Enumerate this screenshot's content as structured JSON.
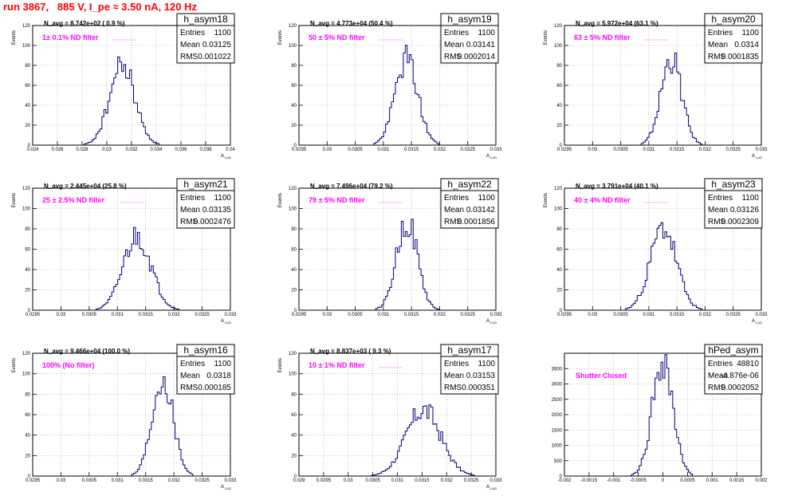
{
  "run_title": "run 3867,   885 V, I_pe ≈ 3.50 nA, 120 Hz",
  "stat_labels": {
    "entries": "Entries",
    "mean": "Mean",
    "rms": "RMS"
  },
  "colors": {
    "title": "#ff0000",
    "filter_note": "#ff00ff",
    "histogram": "#000080",
    "grid": "#999999",
    "frame": "#000000"
  },
  "chart_data": [
    {
      "type": "bar",
      "hist_name": "h_asym18",
      "navg": "N_avg = 8.742e+02 ( 0.9 %)",
      "note": "1± 0.1% ND filter",
      "entries": "1100",
      "mean": "0.03125",
      "rms": "0.001022",
      "ylabel": "Events",
      "xlabel": "A",
      "xlim": [
        0.024,
        0.04
      ],
      "ylim": [
        0,
        120
      ],
      "xticks": [
        "0.024",
        "0.026",
        "0.028",
        "0.03",
        "0.032",
        "0.034",
        "0.036",
        "0.038",
        "0.04"
      ],
      "yticks": [
        "0",
        "20",
        "40",
        "60",
        "80",
        "100",
        "120"
      ],
      "grid": true,
      "center": 0.03125,
      "sigma": 0.001022,
      "peak": 80,
      "seed": 18
    },
    {
      "type": "bar",
      "hist_name": "h_asym19",
      "navg": "N_avg = 4.773e+04 (50.4 %)",
      "note": "50 ± 5% ND filter",
      "entries": "1100",
      "mean": "0.03141",
      "rms": "0.0002014",
      "ylabel": "Events",
      "xlabel": "A",
      "xlim": [
        0.0295,
        0.033
      ],
      "ylim": [
        0,
        120
      ],
      "xticks": [
        "0.0295",
        "0.03",
        "0.0305",
        "0.031",
        "0.0315",
        "0.032",
        "0.0325",
        "0.033"
      ],
      "yticks": [
        "0",
        "20",
        "40",
        "60",
        "80",
        "100",
        "120"
      ],
      "grid": true,
      "center": 0.03141,
      "sigma": 0.0002014,
      "peak": 86,
      "seed": 19
    },
    {
      "type": "bar",
      "hist_name": "h_asym20",
      "navg": "N_avg = 5.972e+04 (63.1 %)",
      "note": "63 ± 5% ND filter",
      "entries": "1100",
      "mean": "0.0314",
      "rms": "0.0001835",
      "ylabel": "Events",
      "xlabel": "A",
      "xlim": [
        0.0295,
        0.033
      ],
      "ylim": [
        0,
        120
      ],
      "xticks": [
        "0.0295",
        "0.03",
        "0.0305",
        "0.031",
        "0.0315",
        "0.032",
        "0.0325",
        "0.033"
      ],
      "yticks": [
        "0",
        "20",
        "40",
        "60",
        "80",
        "100",
        "120"
      ],
      "grid": true,
      "center": 0.0314,
      "sigma": 0.0001835,
      "peak": 87,
      "seed": 20
    },
    {
      "type": "bar",
      "hist_name": "h_asym21",
      "navg": "N_avg = 2.445e+04 (25.8 %)",
      "note": "25 ± 2.5% ND filter",
      "entries": "1100",
      "mean": "0.03135",
      "rms": "0.0002476",
      "ylabel": "Events",
      "xlabel": "A",
      "xlim": [
        0.0295,
        0.033
      ],
      "ylim": [
        0,
        120
      ],
      "xticks": [
        "0.0295",
        "0.03",
        "0.0305",
        "0.031",
        "0.0315",
        "0.032",
        "0.0325",
        "0.033"
      ],
      "yticks": [
        "0",
        "20",
        "40",
        "60",
        "80",
        "100",
        "120"
      ],
      "grid": true,
      "center": 0.03135,
      "sigma": 0.0002476,
      "peak": 73,
      "seed": 21
    },
    {
      "type": "bar",
      "hist_name": "h_asym22",
      "navg": "N_avg = 7.496e+04 (79.2 %)",
      "note": "79 ± 5% ND filter",
      "entries": "1100",
      "mean": "0.03142",
      "rms": "0.0001856",
      "ylabel": "Events",
      "xlabel": "A",
      "xlim": [
        0.0295,
        0.033
      ],
      "ylim": [
        0,
        120
      ],
      "xticks": [
        "0.0295",
        "0.03",
        "0.0305",
        "0.031",
        "0.0315",
        "0.032",
        "0.0325",
        "0.033"
      ],
      "yticks": [
        "0",
        "20",
        "40",
        "60",
        "80",
        "100",
        "120"
      ],
      "grid": true,
      "center": 0.03142,
      "sigma": 0.0001856,
      "peak": 88,
      "seed": 22
    },
    {
      "type": "bar",
      "hist_name": "h_asym23",
      "navg": "N_avg = 3.791e+04 (40.1 %)",
      "note": "40 ± 4% ND filter",
      "entries": "1100",
      "mean": "0.03126",
      "rms": "0.0002309",
      "ylabel": "Events",
      "xlabel": "A",
      "xlim": [
        0.0295,
        0.033
      ],
      "ylim": [
        0,
        120
      ],
      "xticks": [
        "0.0295",
        "0.03",
        "0.0305",
        "0.031",
        "0.0315",
        "0.032",
        "0.0325",
        "0.033"
      ],
      "yticks": [
        "0",
        "20",
        "40",
        "60",
        "80",
        "100",
        "120"
      ],
      "grid": true,
      "center": 0.03126,
      "sigma": 0.0002309,
      "peak": 81,
      "seed": 23
    },
    {
      "type": "bar",
      "hist_name": "h_asym16",
      "navg": "N_avg = 9.466e+04 (100.0 %)",
      "note": "100% (No filter)",
      "entries": "1100",
      "mean": "0.0318",
      "rms": "0.000185",
      "ylabel": "Events",
      "xlabel": "A",
      "xlim": [
        0.0295,
        0.033
      ],
      "ylim": [
        0,
        120
      ],
      "xticks": [
        "0.0295",
        "0.03",
        "0.0305",
        "0.031",
        "0.0315",
        "0.032",
        "0.0325",
        "0.033"
      ],
      "yticks": [
        "0",
        "20",
        "40",
        "60",
        "80",
        "100",
        "120"
      ],
      "grid": true,
      "center": 0.0318,
      "sigma": 0.000185,
      "peak": 96,
      "seed": 16
    },
    {
      "type": "bar",
      "hist_name": "h_asym17",
      "navg": "N_avg = 8.837e+03 ( 9.3 %)",
      "note": "10 ± 1% ND filter",
      "entries": "1100",
      "mean": "0.03153",
      "rms": "0.000351",
      "ylabel": "Events",
      "xlabel": "A",
      "xlim": [
        0.029,
        0.033
      ],
      "ylim": [
        0,
        120
      ],
      "xticks": [
        "0.029",
        "0.0295",
        "0.03",
        "0.0305",
        "0.031",
        "0.0315",
        "0.032",
        "0.0325",
        "0.033"
      ],
      "yticks": [
        "0",
        "20",
        "40",
        "60",
        "80",
        "100",
        "120"
      ],
      "grid": true,
      "center": 0.03153,
      "sigma": 0.000351,
      "peak": 65,
      "seed": 17
    },
    {
      "type": "bar",
      "hist_name": "hPed_asym",
      "navg": "",
      "note": "Shutter Closed",
      "entries": "48810",
      "mean": "-4.876e-06",
      "rms": "0.0002052",
      "ylabel": "",
      "xlabel": "",
      "xlim": [
        -0.002,
        0.002
      ],
      "ylim": [
        0,
        4000
      ],
      "xticks": [
        "-0.002",
        "-0.0015",
        "-0.001",
        "-0.0005",
        "0",
        "0.0005",
        "0.001",
        "0.0015",
        "0.002"
      ],
      "yticks": [
        "0",
        "500",
        "1000",
        "1500",
        "2000",
        "2500",
        "3000",
        "3500"
      ],
      "grid": true,
      "center": -4.876e-06,
      "sigma": 0.0002052,
      "peak": 3850,
      "seed": 99
    }
  ]
}
